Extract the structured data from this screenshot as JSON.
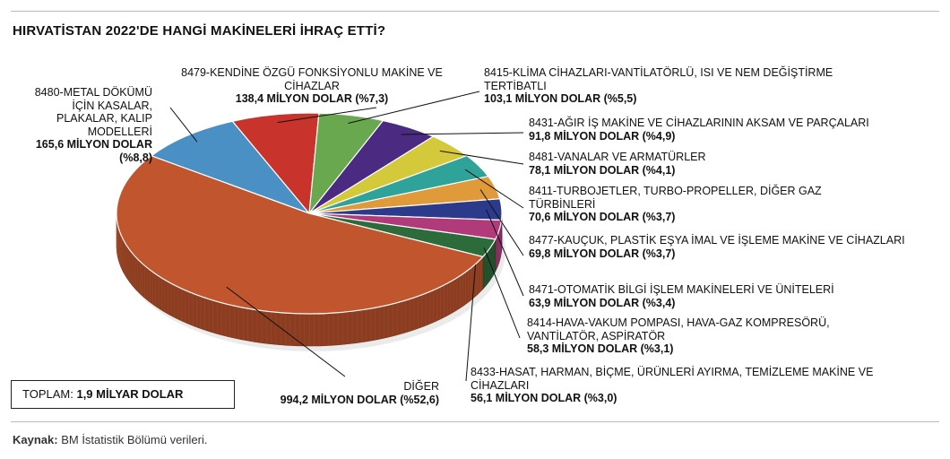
{
  "title": "HIRVATİSTAN 2022'DE HANGİ MAKİNELERİ İHRAÇ ETTİ?",
  "source": {
    "label": "Kaynak:",
    "text": "BM İstatistik Bölümü verileri."
  },
  "total": {
    "label": "TOPLAM:",
    "value": "1,9 MİLYAR DOLAR"
  },
  "chart_data": {
    "type": "pie",
    "unit": "MİLYON DOLAR",
    "slices": [
      {
        "name": "8480-METAL DÖKÜMÜ İÇİN KASALAR, PLAKALAR, KALIP MODELLERİ",
        "value": 165.6,
        "value_label": "165,6 MİLYON DOLAR (%8,8)",
        "color": "#4a90c4"
      },
      {
        "name": "8479-KENDİNE ÖZGÜ FONKSİYONLU MAKİNE VE CİHAZLAR",
        "value": 138.4,
        "value_label": "138,4 MİLYON DOLAR (%7,3)",
        "color": "#c8332b"
      },
      {
        "name": "8415-KLİMA CİHAZLARI-VANTİLATÖRLÜ, ISI VE NEM DEĞİŞTİRME TERTİBATLI",
        "value": 103.1,
        "value_label": "103,1 MİLYON DOLAR (%5,5)",
        "color": "#6aa84f"
      },
      {
        "name": "8431-AĞIR İŞ MAKİNE VE CİHAZLARININ AKSAM VE PARÇALARI",
        "value": 91.8,
        "value_label": "91,8 MİLYON DOLAR (%4,9)",
        "color": "#4b2a82"
      },
      {
        "name": "8481-VANALAR VE ARMATÜRLER",
        "value": 78.1,
        "value_label": "78,1 MİLYON DOLAR (%4,1)",
        "color": "#d4c93a"
      },
      {
        "name": "8411-TURBOJETLER, TURBO-PROPELLER, DİĞER GAZ TÜRBİNLERİ",
        "value": 70.6,
        "value_label": "70,6 MİLYON DOLAR (%3,7)",
        "color": "#2fa39a"
      },
      {
        "name": "8477-KAUÇUK, PLASTİK EŞYA İMAL VE İŞLEME MAKİNE VE CİHAZLARI",
        "value": 69.8,
        "value_label": "69,8 MİLYON DOLAR (%3,7)",
        "color": "#e09a3a"
      },
      {
        "name": "8471-OTOMATİK BİLGİ İŞLEM MAKİNELERİ VE ÜNİTELERİ",
        "value": 63.9,
        "value_label": "63,9 MİLYON DOLAR (%3,4)",
        "color": "#2c3a8c"
      },
      {
        "name": "8414-HAVA-VAKUM POMPASI, HAVA-GAZ KOMPRESÖRÜ, VANTİLATÖR, ASPİRATÖR",
        "value": 58.3,
        "value_label": "58,3 MİLYON DOLAR (%3,1)",
        "color": "#b03a7a"
      },
      {
        "name": "8433-HASAT, HARMAN, BİÇME, ÜRÜNLERİ AYIRMA, TEMİZLEME MAKİNE VE CİHAZLARI",
        "value": 56.1,
        "value_label": "56,1 MİLYON DOLAR (%3,0)",
        "color": "#2e6b3a"
      },
      {
        "name": "DİĞER",
        "value": 994.2,
        "value_label": "994,2 MİLYON DOLAR (%52,6)",
        "color": "#c0552e"
      }
    ]
  }
}
